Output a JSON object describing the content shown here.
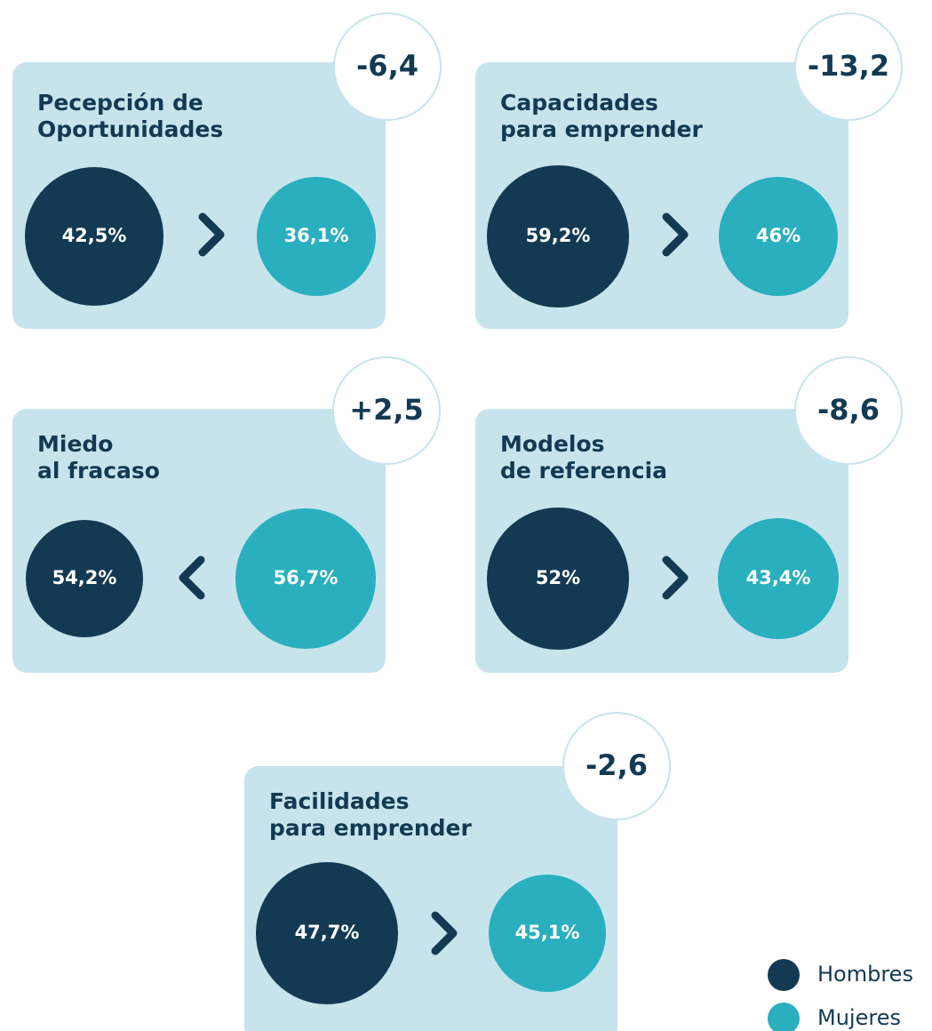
{
  "cards": [
    {
      "title": [
        "Pecepción de",
        "Oportunidades"
      ],
      "difference": "-6,4",
      "hombres": "42,5%",
      "mujeres": "36,1%"
    },
    {
      "title": [
        "Capacidades",
        "para emprender"
      ],
      "difference": "-13,2",
      "hombres": "59,2%",
      "mujeres": "46%"
    },
    {
      "title": [
        "Miedo",
        "al fracaso"
      ],
      "difference": "+2,5",
      "hombres": "54,2%",
      "mujeres": "56,7%"
    },
    {
      "title": [
        "Modelos",
        "de referencia"
      ],
      "difference": "-8,6",
      "hombres": "52%",
      "mujeres": "43,4%"
    },
    {
      "title": [
        "Facilidades",
        "para emprender"
      ],
      "difference": "-2,6",
      "hombres": "47,7%",
      "mujeres": "45,1%"
    }
  ],
  "legend": [
    "Hombres",
    "Mujeres"
  ]
}
